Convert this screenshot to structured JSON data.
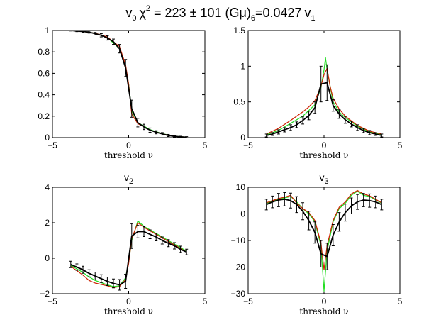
{
  "figure": {
    "title_lhs": "v",
    "title_lhs_sub": "0",
    "chi": "χ",
    "chi_sup": "2",
    "title_mid": " = 223 ± 101 (Gμ)",
    "title_sub": "6",
    "title_rhs": "=0.0427",
    "title_end": "v",
    "title_end_sub": "1"
  },
  "colors": {
    "data": "#000000",
    "red": "#cc2200",
    "green": "#22dd22",
    "axis": "#000000"
  },
  "chart_data": [
    {
      "id": "v0",
      "type": "line",
      "title": "",
      "xlabel": "threshold ν",
      "ylabel": "",
      "xlim": [
        -5,
        5
      ],
      "ylim": [
        0,
        1
      ],
      "xticks": [
        "-5",
        "0",
        "5"
      ],
      "yticks": [
        "0",
        "0.2",
        "0.4",
        "0.6",
        "0.8",
        "1"
      ],
      "series": [
        {
          "name": "data",
          "style": "errorbar",
          "x": [
            -3.8,
            -3.4,
            -3.0,
            -2.6,
            -2.2,
            -1.8,
            -1.4,
            -1.0,
            -0.6,
            -0.2,
            0.2,
            0.6,
            1.0,
            1.4,
            1.8,
            2.2,
            2.6,
            3.0,
            3.4,
            3.8
          ],
          "y": [
            1.0,
            0.995,
            0.99,
            0.985,
            0.97,
            0.955,
            0.93,
            0.895,
            0.83,
            0.65,
            0.27,
            0.14,
            0.1,
            0.07,
            0.05,
            0.035,
            0.02,
            0.012,
            0.007,
            0.004
          ],
          "err": [
            0.005,
            0.006,
            0.008,
            0.01,
            0.012,
            0.015,
            0.02,
            0.025,
            0.04,
            0.08,
            0.08,
            0.04,
            0.025,
            0.02,
            0.015,
            0.012,
            0.01,
            0.008,
            0.006,
            0.005
          ]
        },
        {
          "name": "green",
          "x": [
            -3.8,
            -3.0,
            -2.2,
            -1.4,
            -0.6,
            -0.2,
            0.0,
            0.2,
            0.6,
            1.4,
            2.2,
            3.0,
            3.8
          ],
          "y": [
            1.0,
            0.99,
            0.975,
            0.935,
            0.83,
            0.65,
            0.5,
            0.25,
            0.14,
            0.075,
            0.037,
            0.013,
            0.004
          ]
        },
        {
          "name": "red",
          "x": [
            -3.8,
            -3.0,
            -2.2,
            -1.4,
            -0.6,
            -0.2,
            0.0,
            0.2,
            0.6,
            1.4,
            2.2,
            3.0,
            3.8
          ],
          "y": [
            1.0,
            0.99,
            0.975,
            0.94,
            0.85,
            0.68,
            0.5,
            0.22,
            0.13,
            0.07,
            0.035,
            0.012,
            0.004
          ]
        }
      ]
    },
    {
      "id": "v1",
      "type": "line",
      "title": "",
      "xlabel": "threshold ν",
      "ylabel": "",
      "xlim": [
        -5,
        5
      ],
      "ylim": [
        0,
        1.5
      ],
      "xticks": [
        "-5",
        "0",
        "5"
      ],
      "yticks": [
        "0",
        "0.5",
        "1",
        "1.5"
      ],
      "series": [
        {
          "name": "data",
          "style": "errorbar",
          "x": [
            -3.8,
            -3.4,
            -3.0,
            -2.6,
            -2.2,
            -1.8,
            -1.4,
            -1.0,
            -0.6,
            -0.2,
            0.2,
            0.6,
            1.0,
            1.4,
            1.8,
            2.2,
            2.6,
            3.0,
            3.4,
            3.8
          ],
          "y": [
            0.03,
            0.05,
            0.08,
            0.11,
            0.14,
            0.18,
            0.24,
            0.31,
            0.42,
            0.75,
            0.77,
            0.45,
            0.33,
            0.25,
            0.19,
            0.14,
            0.1,
            0.07,
            0.05,
            0.03
          ],
          "err": [
            0.02,
            0.02,
            0.03,
            0.03,
            0.04,
            0.04,
            0.05,
            0.06,
            0.08,
            0.25,
            0.25,
            0.08,
            0.06,
            0.05,
            0.04,
            0.04,
            0.03,
            0.03,
            0.02,
            0.02
          ]
        },
        {
          "name": "green",
          "x": [
            -3.8,
            -3.0,
            -2.2,
            -1.4,
            -1.0,
            -0.6,
            -0.2,
            0.0,
            0.1,
            0.2,
            0.6,
            1.0,
            1.4,
            2.2,
            3.0,
            3.8
          ],
          "y": [
            0.04,
            0.1,
            0.2,
            0.3,
            0.38,
            0.46,
            0.7,
            0.95,
            1.12,
            0.95,
            0.5,
            0.36,
            0.28,
            0.16,
            0.08,
            0.04
          ]
        },
        {
          "name": "red",
          "x": [
            -3.8,
            -3.0,
            -2.2,
            -1.4,
            -1.0,
            -0.6,
            -0.2,
            0.0,
            0.2,
            0.4,
            0.6,
            1.0,
            1.4,
            2.2,
            3.0,
            3.8
          ],
          "y": [
            0.05,
            0.13,
            0.24,
            0.36,
            0.43,
            0.52,
            0.72,
            0.88,
            0.97,
            0.72,
            0.55,
            0.4,
            0.3,
            0.17,
            0.09,
            0.05
          ]
        }
      ]
    },
    {
      "id": "v2",
      "type": "line",
      "title": "v",
      "title_sub": "2",
      "xlabel": "threshold ν",
      "ylabel": "",
      "xlim": [
        -5,
        5
      ],
      "ylim": [
        -2,
        4
      ],
      "xticks": [
        "-5",
        "0",
        "5"
      ],
      "yticks": [
        "-2",
        "0",
        "2",
        "4"
      ],
      "series": [
        {
          "name": "data",
          "style": "errorbar",
          "x": [
            -3.8,
            -3.4,
            -3.0,
            -2.6,
            -2.2,
            -1.8,
            -1.4,
            -1.0,
            -0.6,
            -0.2,
            0.2,
            0.6,
            1.0,
            1.4,
            1.8,
            2.2,
            2.6,
            3.0,
            3.4,
            3.8
          ],
          "y": [
            -0.35,
            -0.5,
            -0.65,
            -0.85,
            -1.0,
            -1.15,
            -1.3,
            -1.42,
            -1.5,
            -1.3,
            1.25,
            1.5,
            1.5,
            1.35,
            1.2,
            1.0,
            0.85,
            0.7,
            0.5,
            0.35
          ],
          "err": [
            0.18,
            0.18,
            0.2,
            0.2,
            0.22,
            0.22,
            0.24,
            0.25,
            0.3,
            0.4,
            0.7,
            0.35,
            0.28,
            0.25,
            0.22,
            0.2,
            0.2,
            0.18,
            0.18,
            0.16
          ]
        },
        {
          "name": "green",
          "x": [
            -3.8,
            -3.0,
            -2.6,
            -2.2,
            -1.4,
            -1.0,
            -0.6,
            -0.2,
            0.0,
            0.2,
            0.6,
            1.0,
            1.4,
            2.2,
            3.0,
            3.8
          ],
          "y": [
            -0.4,
            -0.8,
            -1.05,
            -1.25,
            -1.5,
            -1.6,
            -1.55,
            -1.1,
            -0.2,
            1.0,
            2.1,
            1.8,
            1.6,
            1.2,
            0.8,
            0.4
          ]
        },
        {
          "name": "red",
          "x": [
            -3.8,
            -3.0,
            -2.6,
            -2.2,
            -1.4,
            -1.0,
            -0.6,
            -0.2,
            0.0,
            0.2,
            0.6,
            1.0,
            1.4,
            2.2,
            3.0,
            3.8
          ],
          "y": [
            -0.45,
            -0.95,
            -1.25,
            -1.4,
            -1.55,
            -1.65,
            -1.6,
            -1.2,
            -0.3,
            1.1,
            2.0,
            1.75,
            1.55,
            1.15,
            0.75,
            0.35
          ]
        }
      ]
    },
    {
      "id": "v3",
      "type": "line",
      "title": "v",
      "title_sub": "3",
      "xlabel": "threshold ν",
      "ylabel": "",
      "xlim": [
        -5,
        5
      ],
      "ylim": [
        -30,
        10
      ],
      "xticks": [
        "-5",
        "0",
        "5"
      ],
      "yticks": [
        "-30",
        "-20",
        "-10",
        "0",
        "10"
      ],
      "series": [
        {
          "name": "data",
          "style": "errorbar",
          "x": [
            -3.8,
            -3.4,
            -3.0,
            -2.6,
            -2.2,
            -1.8,
            -1.4,
            -1.0,
            -0.6,
            -0.2,
            0.2,
            0.6,
            1.0,
            1.4,
            1.8,
            2.2,
            2.6,
            3.0,
            3.4,
            3.8
          ],
          "y": [
            3.5,
            4.5,
            5.2,
            5.5,
            5.0,
            3.5,
            1.0,
            -2.5,
            -7.0,
            -15.0,
            -16.0,
            -8.0,
            -3.0,
            0.5,
            3.0,
            4.5,
            5.2,
            5.0,
            4.5,
            3.5
          ],
          "err": [
            2.0,
            2.2,
            2.5,
            2.5,
            2.8,
            3.0,
            3.2,
            3.5,
            4.0,
            5.0,
            5.0,
            4.0,
            3.5,
            3.2,
            3.0,
            2.8,
            2.5,
            2.5,
            2.2,
            2.0
          ]
        },
        {
          "name": "green",
          "x": [
            -3.8,
            -3.0,
            -2.6,
            -2.2,
            -1.8,
            -1.4,
            -1.0,
            -0.6,
            -0.2,
            0.0,
            0.2,
            0.6,
            1.0,
            1.4,
            1.8,
            2.2,
            2.6,
            3.0,
            3.8
          ],
          "y": [
            4.0,
            5.5,
            6.0,
            6.5,
            4.5,
            2.0,
            0.0,
            -3.0,
            -12.0,
            -29.0,
            -14.0,
            -3.0,
            2.0,
            4.0,
            7.0,
            8.5,
            7.0,
            6.5,
            4.0
          ]
        },
        {
          "name": "red",
          "x": [
            -3.8,
            -3.0,
            -2.6,
            -2.2,
            -1.8,
            -1.4,
            -1.0,
            -0.6,
            -0.2,
            0.0,
            0.2,
            0.6,
            1.0,
            1.4,
            1.8,
            2.2,
            2.6,
            3.0,
            3.8
          ],
          "y": [
            4.2,
            5.8,
            6.3,
            7.0,
            4.0,
            2.0,
            0.5,
            -2.5,
            -11.0,
            -21.0,
            -12.0,
            -2.5,
            2.5,
            4.5,
            7.5,
            8.8,
            7.5,
            6.8,
            4.2
          ]
        }
      ]
    }
  ]
}
